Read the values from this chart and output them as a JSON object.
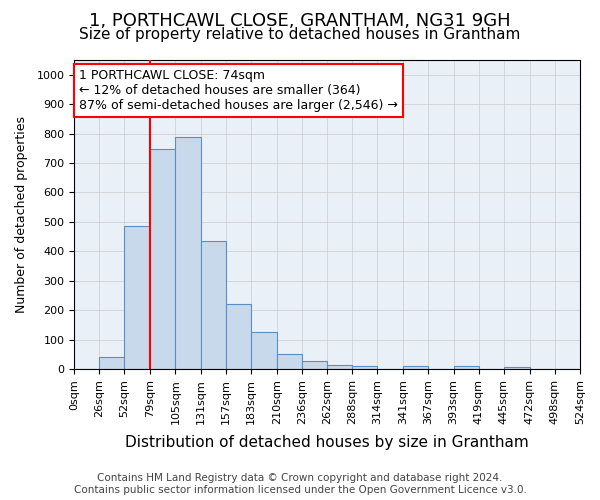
{
  "title": "1, PORTHCAWL CLOSE, GRANTHAM, NG31 9GH",
  "subtitle": "Size of property relative to detached houses in Grantham",
  "xlabel": "Distribution of detached houses by size in Grantham",
  "ylabel": "Number of detached properties",
  "footer_line1": "Contains HM Land Registry data © Crown copyright and database right 2024.",
  "footer_line2": "Contains public sector information licensed under the Open Government Licence v3.0.",
  "annotation_line1": "1 PORTHCAWL CLOSE: 74sqm",
  "annotation_line2": "← 12% of detached houses are smaller (364)",
  "annotation_line3": "87% of semi-detached houses are larger (2,546) →",
  "bar_edges": [
    0,
    26,
    52,
    79,
    105,
    131,
    157,
    183,
    210,
    236,
    262,
    288,
    314,
    341,
    367,
    393,
    419,
    445,
    472,
    498,
    524
  ],
  "bar_heights": [
    0,
    42,
    485,
    748,
    790,
    435,
    220,
    125,
    52,
    27,
    13,
    10,
    0,
    10,
    0,
    10,
    0,
    8,
    0,
    0
  ],
  "tick_labels": [
    "0sqm",
    "26sqm",
    "52sqm",
    "79sqm",
    "105sqm",
    "131sqm",
    "157sqm",
    "183sqm",
    "210sqm",
    "236sqm",
    "262sqm",
    "288sqm",
    "314sqm",
    "341sqm",
    "367sqm",
    "393sqm",
    "419sqm",
    "445sqm",
    "472sqm",
    "498sqm",
    "524sqm"
  ],
  "ylim": [
    0,
    1050
  ],
  "yticks": [
    0,
    100,
    200,
    300,
    400,
    500,
    600,
    700,
    800,
    900,
    1000
  ],
  "bar_color": "#c9d9ec",
  "bar_edge_color": "#5a8fc3",
  "bar_linewidth": 0.8,
  "vline_x": 79,
  "vline_color": "red",
  "vline_lw": 1.5,
  "annotation_box_color": "red",
  "grid_color": "#cccccc",
  "bg_color": "#eaf0f8",
  "title_fontsize": 13,
  "subtitle_fontsize": 11,
  "xlabel_fontsize": 11,
  "ylabel_fontsize": 9,
  "tick_fontsize": 8,
  "annotation_fontsize": 9,
  "footer_fontsize": 7.5
}
